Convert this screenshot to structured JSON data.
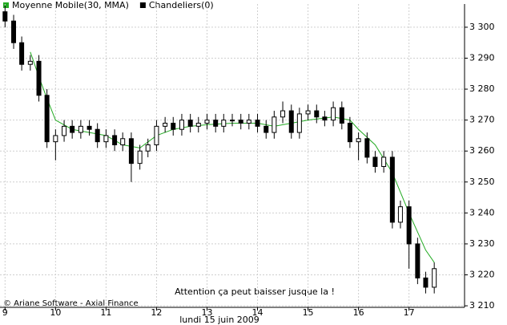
{
  "chart_data": {
    "type": "candlestick",
    "legend": [
      {
        "name": "Moyenne Mobile(30, MMA)",
        "color": "#22aa22"
      },
      {
        "name": "Chandeliers(0)",
        "color": "#000000"
      }
    ],
    "x": [
      9,
      9.17,
      9.33,
      9.5,
      9.67,
      9.83,
      10,
      10.17,
      10.33,
      10.5,
      10.67,
      10.83,
      11,
      11.17,
      11.33,
      11.5,
      11.67,
      11.83,
      12,
      12.17,
      12.33,
      12.5,
      12.67,
      12.83,
      13,
      13.17,
      13.33,
      13.5,
      13.67,
      13.83,
      14,
      14.17,
      14.33,
      14.5,
      14.67,
      14.83,
      15,
      15.17,
      15.33,
      15.5,
      15.67,
      15.83,
      16,
      16.17,
      16.33,
      16.5,
      16.67,
      16.83,
      17,
      17.17,
      17.33,
      17.5
    ],
    "open": [
      3305,
      3302,
      3295,
      3288,
      3289,
      3278,
      3263,
      3265,
      3268,
      3266,
      3268,
      3267,
      3263,
      3265,
      3262,
      3264,
      3256,
      3260,
      3262,
      3268,
      3269,
      3267,
      3270,
      3268,
      3269,
      3270,
      3268,
      3270,
      3270,
      3269,
      3270,
      3268,
      3266,
      3271,
      3273,
      3266,
      3272,
      3273,
      3271,
      3270,
      3274,
      3269,
      3263,
      3264,
      3258,
      3255,
      3258,
      3237,
      3242,
      3230,
      3219,
      3216
    ],
    "high": [
      3307,
      3304,
      3297,
      3291,
      3291,
      3280,
      3267,
      3270,
      3270,
      3270,
      3270,
      3269,
      3267,
      3267,
      3266,
      3266,
      3262,
      3264,
      3270,
      3271,
      3271,
      3272,
      3272,
      3271,
      3272,
      3272,
      3272,
      3272,
      3272,
      3272,
      3272,
      3270,
      3273,
      3276,
      3275,
      3274,
      3275,
      3275,
      3273,
      3276,
      3276,
      3271,
      3266,
      3266,
      3260,
      3260,
      3260,
      3244,
      3244,
      3232,
      3221,
      3224
    ],
    "low": [
      3300,
      3293,
      3286,
      3286,
      3276,
      3261,
      3257,
      3263,
      3264,
      3264,
      3265,
      3261,
      3261,
      3260,
      3260,
      3250,
      3254,
      3258,
      3260,
      3266,
      3265,
      3265,
      3266,
      3266,
      3267,
      3266,
      3266,
      3268,
      3267,
      3267,
      3266,
      3264,
      3264,
      3269,
      3264,
      3264,
      3270,
      3269,
      3268,
      3268,
      3267,
      3261,
      3257,
      3256,
      3253,
      3253,
      3235,
      3235,
      3222,
      3217,
      3214,
      3214
    ],
    "close": [
      3302,
      3295,
      3288,
      3289,
      3278,
      3263,
      3265,
      3268,
      3266,
      3268,
      3267,
      3263,
      3265,
      3262,
      3264,
      3256,
      3260,
      3262,
      3268,
      3269,
      3267,
      3270,
      3268,
      3269,
      3270,
      3268,
      3270,
      3270,
      3269,
      3270,
      3268,
      3266,
      3271,
      3273,
      3266,
      3272,
      3273,
      3271,
      3270,
      3274,
      3269,
      3263,
      3264,
      3258,
      3255,
      3258,
      3237,
      3242,
      3230,
      3219,
      3216,
      3222
    ],
    "moving_average": {
      "x": [
        9.5,
        9.67,
        9.83,
        10,
        10.33,
        10.67,
        11,
        11.33,
        11.67,
        12,
        12.33,
        12.67,
        13,
        13.5,
        14,
        14.33,
        14.67,
        15,
        15.5,
        15.83,
        16,
        16.33,
        16.67,
        17,
        17.33,
        17.5
      ],
      "values": [
        3292,
        3284,
        3277,
        3270,
        3267,
        3266,
        3265,
        3262,
        3261,
        3265,
        3267,
        3268,
        3268.5,
        3269,
        3269,
        3268,
        3269,
        3270,
        3271,
        3270,
        3267,
        3262,
        3253,
        3240,
        3228,
        3224
      ]
    },
    "xlim": [
      8.9,
      18.1
    ],
    "xticks": [
      9,
      10,
      11,
      12,
      13,
      14,
      15,
      16,
      17
    ],
    "ylim": [
      3209.5,
      3307.5
    ],
    "yticks": [
      {
        "value": 3210,
        "label": "3 210"
      },
      {
        "value": 3220,
        "label": "3 220"
      },
      {
        "value": 3230,
        "label": "3 230"
      },
      {
        "value": 3240,
        "label": "3 240"
      },
      {
        "value": 3250,
        "label": "3 250"
      },
      {
        "value": 3260,
        "label": "3 260"
      },
      {
        "value": 3270,
        "label": "3 270"
      },
      {
        "value": 3280,
        "label": "3 280"
      },
      {
        "value": 3290,
        "label": "3 290"
      },
      {
        "value": 3300,
        "label": "3 300"
      }
    ],
    "grid": true,
    "xlabel": "lundi 15 juin 2009",
    "annotation": "Attention ça peut baisser jusque la !",
    "footer": "© Ariane Software - Axial Finance"
  }
}
